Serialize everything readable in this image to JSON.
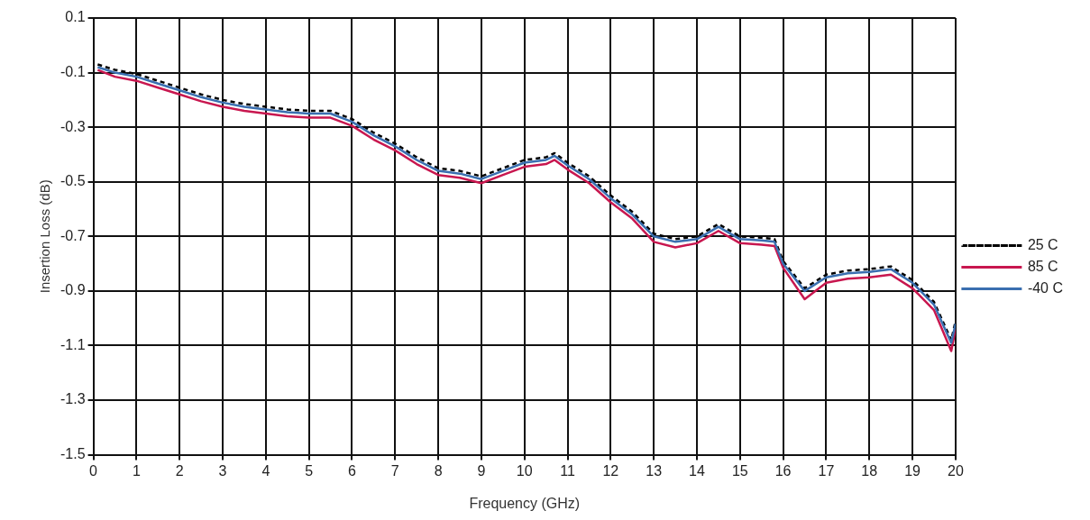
{
  "chart_data": {
    "type": "line",
    "xlabel": "Frequency (GHz)",
    "ylabel": "Insertion Loss (dB)",
    "x": [
      0.1,
      0.5,
      1,
      1.5,
      2,
      2.5,
      3,
      3.5,
      4,
      4.5,
      5,
      5.5,
      6,
      6.5,
      7,
      7.5,
      8,
      8.5,
      9,
      9.5,
      10,
      10.5,
      10.7,
      11,
      11.5,
      12,
      12.5,
      13,
      13.5,
      14,
      14.5,
      15,
      15.5,
      15.8,
      16,
      16.5,
      17,
      17.5,
      18,
      18.5,
      19,
      19.5,
      19.9,
      20
    ],
    "series": [
      {
        "name": "25 C",
        "color": "#000000",
        "line_style": "dashed",
        "values": [
          -0.07,
          -0.09,
          -0.105,
          -0.13,
          -0.155,
          -0.18,
          -0.2,
          -0.215,
          -0.225,
          -0.235,
          -0.24,
          -0.24,
          -0.27,
          -0.32,
          -0.36,
          -0.41,
          -0.45,
          -0.46,
          -0.48,
          -0.45,
          -0.42,
          -0.41,
          -0.395,
          -0.43,
          -0.48,
          -0.55,
          -0.61,
          -0.69,
          -0.71,
          -0.7,
          -0.655,
          -0.7,
          -0.705,
          -0.71,
          -0.79,
          -0.89,
          -0.84,
          -0.825,
          -0.82,
          -0.81,
          -0.86,
          -0.94,
          -1.08,
          -1.01
        ]
      },
      {
        "name": "85 C",
        "color": "#c8174f",
        "line_style": "solid",
        "values": [
          -0.09,
          -0.115,
          -0.13,
          -0.155,
          -0.18,
          -0.205,
          -0.225,
          -0.24,
          -0.25,
          -0.26,
          -0.265,
          -0.265,
          -0.295,
          -0.345,
          -0.385,
          -0.435,
          -0.475,
          -0.485,
          -0.505,
          -0.475,
          -0.445,
          -0.435,
          -0.42,
          -0.455,
          -0.505,
          -0.575,
          -0.635,
          -0.72,
          -0.74,
          -0.725,
          -0.68,
          -0.725,
          -0.73,
          -0.735,
          -0.815,
          -0.93,
          -0.87,
          -0.855,
          -0.85,
          -0.84,
          -0.89,
          -0.97,
          -1.12,
          -1.04
        ]
      },
      {
        "name": "-40 C",
        "color": "#3a6fb0",
        "line_style": "solid",
        "values": [
          -0.08,
          -0.1,
          -0.115,
          -0.14,
          -0.165,
          -0.19,
          -0.21,
          -0.225,
          -0.235,
          -0.245,
          -0.25,
          -0.25,
          -0.28,
          -0.33,
          -0.37,
          -0.42,
          -0.46,
          -0.47,
          -0.49,
          -0.46,
          -0.43,
          -0.42,
          -0.405,
          -0.44,
          -0.49,
          -0.56,
          -0.62,
          -0.7,
          -0.72,
          -0.71,
          -0.665,
          -0.71,
          -0.715,
          -0.72,
          -0.8,
          -0.9,
          -0.85,
          -0.835,
          -0.83,
          -0.82,
          -0.87,
          -0.95,
          -1.09,
          -1.02
        ]
      }
    ],
    "xlim": [
      0,
      20
    ],
    "xticks": [
      0,
      1,
      2,
      3,
      4,
      5,
      6,
      7,
      8,
      9,
      10,
      11,
      12,
      13,
      14,
      15,
      16,
      17,
      18,
      19,
      20
    ],
    "ylim": [
      -1.5,
      0.1
    ],
    "yticks": [
      -1.5,
      -1.3,
      -1.1,
      -0.9,
      -0.7,
      -0.5,
      -0.3,
      -0.1,
      0.1
    ],
    "grid": true,
    "legend": "right",
    "marker": "none"
  }
}
